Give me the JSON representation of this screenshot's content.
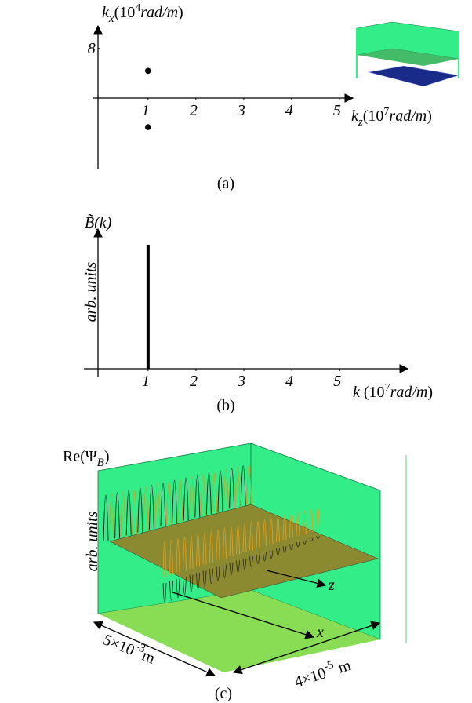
{
  "chart_data": [
    {
      "type": "scatter",
      "ylabel": [
        "k",
        "x",
        "(10",
        "4",
        "rad/m",
        ")"
      ],
      "xlabel": [
        "k",
        "z",
        "(10",
        "7",
        "rad/m",
        ")"
      ],
      "x": [
        1,
        1
      ],
      "values": [
        4.4,
        -4.7
      ],
      "color": "#000000",
      "xlim": [
        -0.16,
        5.28
      ],
      "ylim": [
        -11.4,
        11.4
      ],
      "xticks": [
        1,
        2,
        3,
        4,
        5
      ],
      "yticks": [
        8
      ],
      "caption": "(a)"
    },
    {
      "type": "bar",
      "title": "B̃(k)",
      "ylabel": "arb. units",
      "xlabel": [
        "k",
        " (10",
        "7",
        "rad/m",
        ")"
      ],
      "x": [
        1
      ],
      "values": [
        1
      ],
      "color": "#000000",
      "xlim": [
        -0.34,
        6.42
      ],
      "ylim": [
        -0.06,
        1.12
      ],
      "xticks": [
        1,
        2,
        3,
        4,
        5
      ],
      "caption": "(b)"
    }
  ],
  "panel_c": {
    "title": [
      "Re(Ψ",
      "B",
      ")"
    ],
    "ylabel": "arb. units",
    "z_label": "z",
    "x_label": "x",
    "dim1": [
      "5×10",
      "-3",
      "m"
    ],
    "dim2": [
      "4×10",
      "-5",
      " m"
    ],
    "caption": "(c)"
  }
}
